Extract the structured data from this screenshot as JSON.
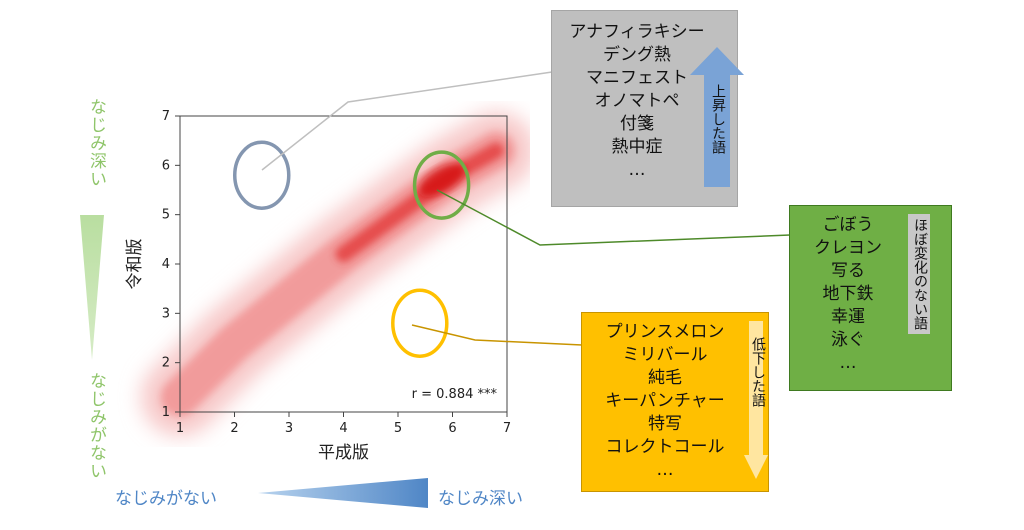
{
  "side_labels": {
    "vertical_top": "なじみ深い",
    "vertical_bottom": "なじみがない",
    "horizontal_left": "なじみがない",
    "horizontal_right": "なじみ深い"
  },
  "chart_data": {
    "type": "heatmap",
    "xlabel": "平成版",
    "ylabel": "令和版",
    "xlim": [
      1,
      7
    ],
    "ylim": [
      1,
      7
    ],
    "x_ticks": [
      "1",
      "2",
      "3",
      "4",
      "5",
      "6",
      "7"
    ],
    "y_ticks": [
      "1",
      "2",
      "3",
      "4",
      "5",
      "6",
      "7"
    ],
    "annotation": "r = 0.884 ***",
    "correlation_r": 0.884,
    "density_band": {
      "centerline": [
        [
          1.0,
          1.3
        ],
        [
          2.0,
          2.4
        ],
        [
          3.0,
          3.3
        ],
        [
          4.0,
          4.2
        ],
        [
          5.0,
          5.0
        ],
        [
          6.0,
          5.8
        ],
        [
          6.8,
          6.3
        ]
      ],
      "peak": [
        5.8,
        5.7
      ]
    },
    "highlight_circles": [
      {
        "name": "rise",
        "x": 2.5,
        "y": 5.8,
        "color": "#8496b0"
      },
      {
        "name": "stable",
        "x": 5.8,
        "y": 5.6,
        "color": "#70ad47"
      },
      {
        "name": "fall",
        "x": 5.4,
        "y": 2.8,
        "color": "#ffc000"
      }
    ]
  },
  "callouts": {
    "rise": {
      "words": [
        "アナフィラキシー",
        "デング熱",
        "マニフェスト",
        "オノマトペ",
        "付箋",
        "熱中症",
        "…"
      ],
      "tag": "上昇した語",
      "color": "#bfbfbf",
      "arrow_color": "#7aa3d6"
    },
    "stable": {
      "words": [
        "ごぼう",
        "クレヨン",
        "写る",
        "地下鉄",
        "幸運",
        "泳ぐ",
        "…"
      ],
      "tag": "ほぼ変化のない語",
      "color": "#6faf45"
    },
    "fall": {
      "words": [
        "プリンスメロン",
        "ミリバール",
        "純毛",
        "キーパンチャー",
        "特写",
        "コレクトコール",
        "…"
      ],
      "tag": "低下した語",
      "color": "#ffc000",
      "arrow_color": "#ffe6a0"
    }
  }
}
